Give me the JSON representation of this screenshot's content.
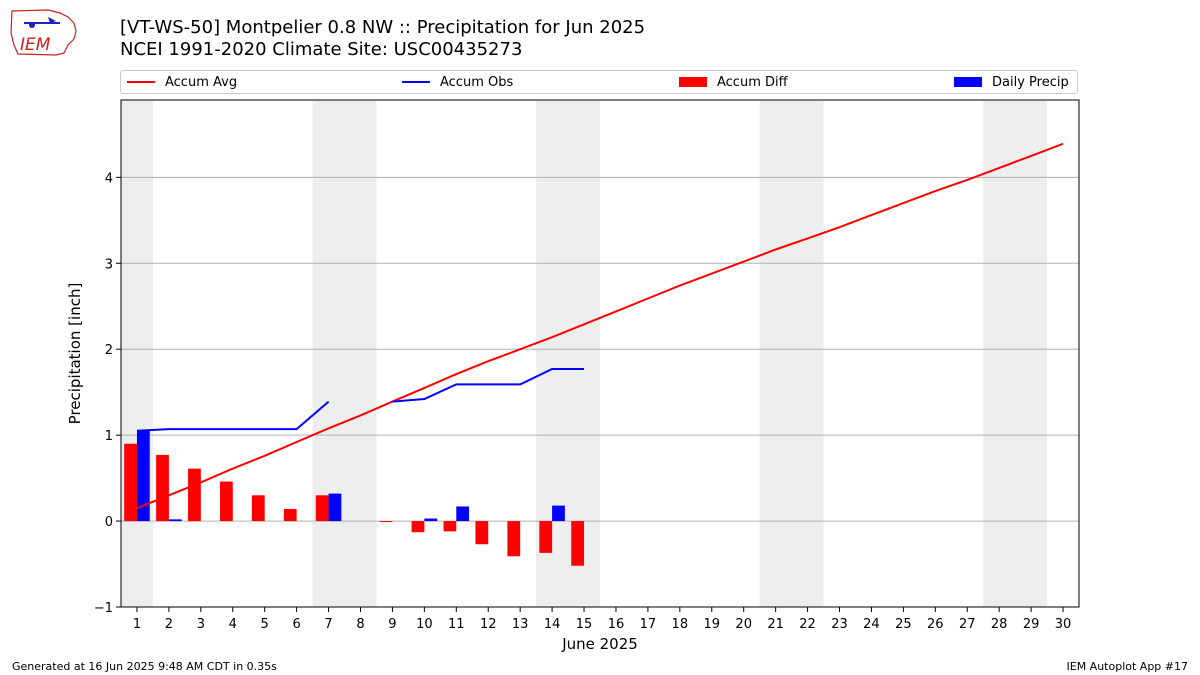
{
  "header": {
    "title_line1": "[VT-WS-50] Montpelier 0.8 NW :: Precipitation for Jun 2025",
    "title_line2": "NCEI 1991-2020 Climate Site: USC00435273",
    "logo_text": "IEM"
  },
  "footer": {
    "generated": "Generated at 16 Jun 2025 9:48 AM CDT in 0.35s",
    "app": "IEM Autoplot App #17"
  },
  "colors": {
    "avg": "#ff0000",
    "obs": "#0000ff",
    "diff": "#ff0000",
    "daily": "#0000ff",
    "weekend_band": "#eeeeee",
    "grid": "#b0b0b0"
  },
  "chart_data": {
    "type": "bar",
    "xlabel": "June 2025",
    "ylabel": "Precipitation [inch]",
    "xlim": [
      0.5,
      30.5
    ],
    "ylim": [
      -1.0,
      4.9
    ],
    "yticks": [
      -1,
      0,
      1,
      2,
      3,
      4
    ],
    "grid": "horizontal",
    "legend_position": "top",
    "legend": [
      "Accum Avg",
      "Accum Obs",
      "Accum Diff",
      "Daily Precip"
    ],
    "days": [
      1,
      2,
      3,
      4,
      5,
      6,
      7,
      8,
      9,
      10,
      11,
      12,
      13,
      14,
      15,
      16,
      17,
      18,
      19,
      20,
      21,
      22,
      23,
      24,
      25,
      26,
      27,
      28,
      29,
      30
    ],
    "weekend_bands": [
      [
        0.5,
        1.5
      ],
      [
        6.5,
        8.5
      ],
      [
        13.5,
        15.5
      ],
      [
        20.5,
        22.5
      ],
      [
        27.5,
        29.5
      ]
    ],
    "series": [
      {
        "name": "Accum Avg",
        "kind": "line",
        "values": [
          0.15,
          0.3,
          0.45,
          0.61,
          0.76,
          0.92,
          1.08,
          1.23,
          1.39,
          1.55,
          1.71,
          1.86,
          2.0,
          2.14,
          2.29,
          2.44,
          2.59,
          2.74,
          2.88,
          3.02,
          3.16,
          3.29,
          3.42,
          3.56,
          3.7,
          3.84,
          3.97,
          4.11,
          4.25,
          4.39
        ]
      },
      {
        "name": "Accum Obs",
        "kind": "line",
        "values": [
          1.05,
          1.07,
          1.07,
          1.07,
          1.07,
          1.07,
          1.39,
          null,
          1.39,
          1.42,
          1.59,
          1.59,
          1.59,
          1.77,
          1.77,
          null,
          null,
          null,
          null,
          null,
          null,
          null,
          null,
          null,
          null,
          null,
          null,
          null,
          null,
          null
        ]
      },
      {
        "name": "Accum Diff",
        "kind": "bar",
        "values": [
          0.9,
          0.77,
          0.61,
          0.46,
          0.3,
          0.14,
          0.3,
          null,
          -0.01,
          -0.13,
          -0.12,
          -0.27,
          -0.41,
          -0.37,
          -0.52,
          null,
          null,
          null,
          null,
          null,
          null,
          null,
          null,
          null,
          null,
          null,
          null,
          null,
          null,
          null
        ]
      },
      {
        "name": "Daily Precip",
        "kind": "bar",
        "values": [
          1.05,
          0.02,
          0.0,
          0.0,
          0.0,
          0.0,
          0.32,
          null,
          0.0,
          0.03,
          0.17,
          0.0,
          0.0,
          0.18,
          0.0,
          null,
          null,
          null,
          null,
          null,
          null,
          null,
          null,
          null,
          null,
          null,
          null,
          null,
          null,
          null
        ]
      }
    ]
  }
}
